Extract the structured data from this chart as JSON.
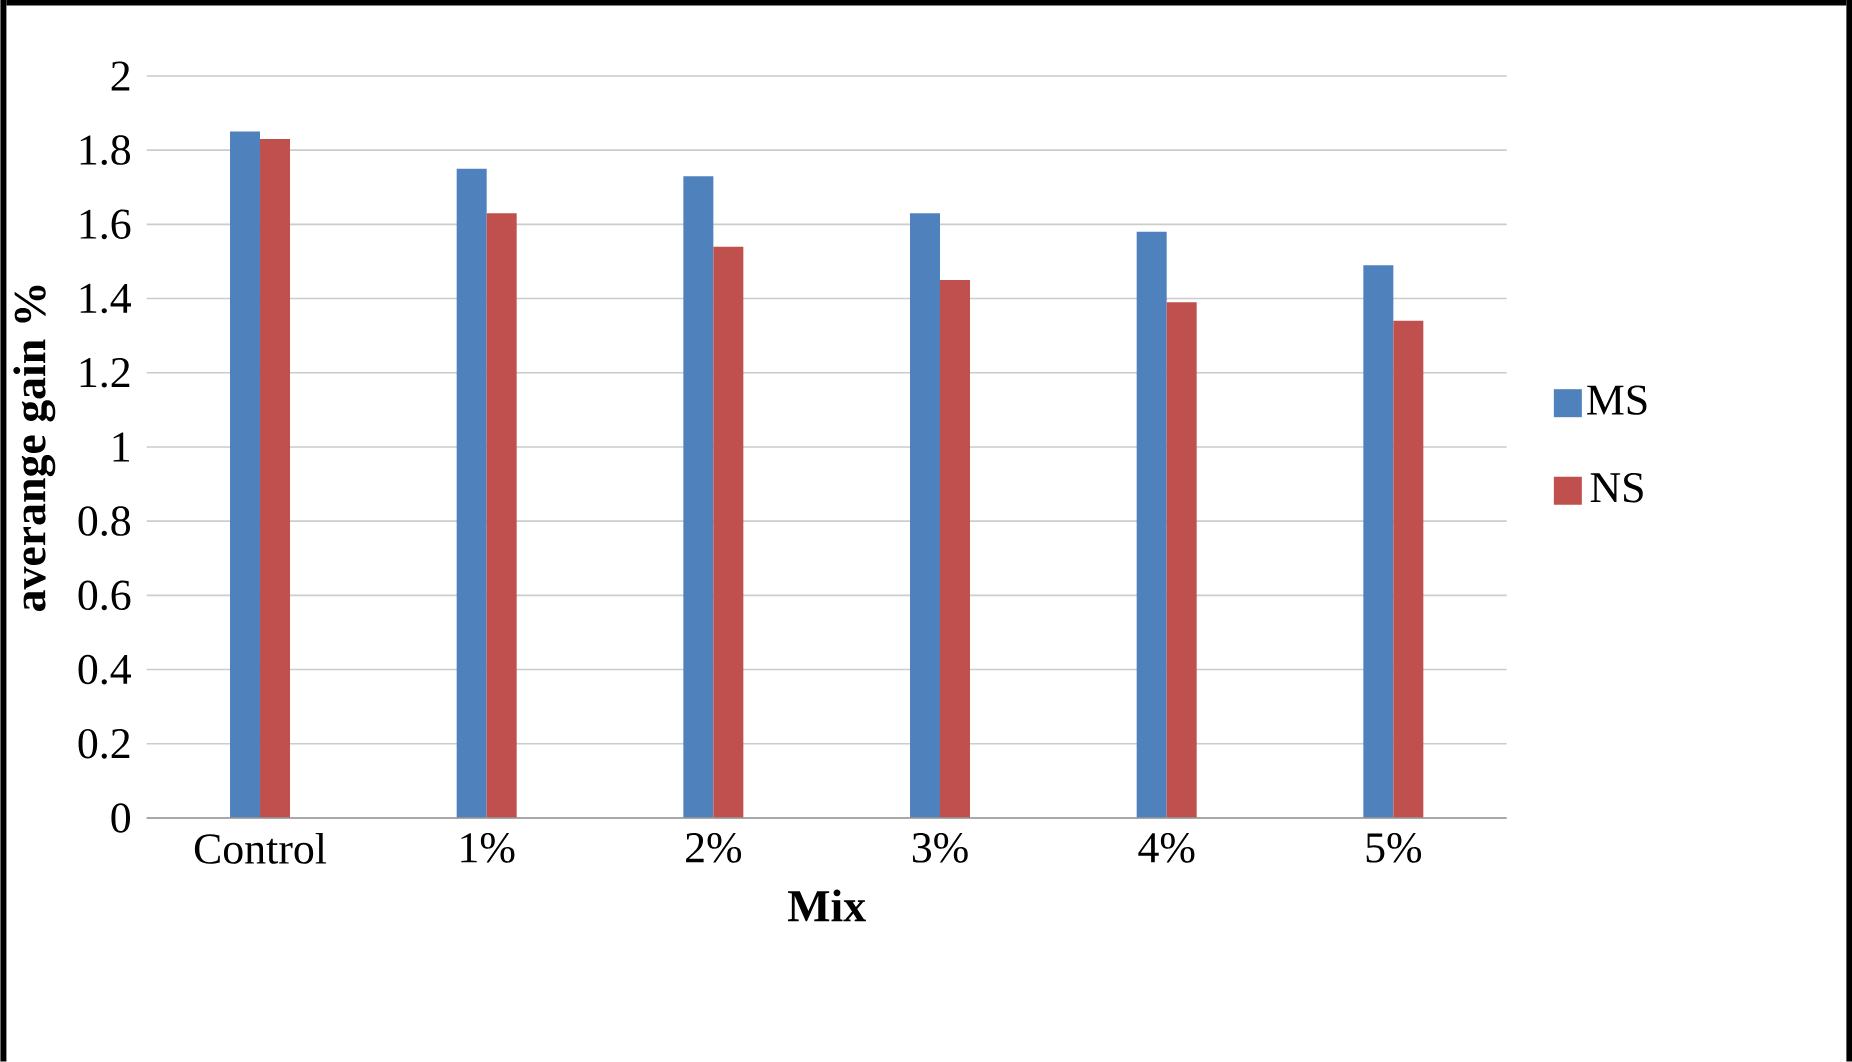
{
  "chart_data": {
    "type": "bar",
    "xlabel": "Mix",
    "ylabel": "averange gain %",
    "categories": [
      "Control",
      "1%",
      "2%",
      "3%",
      "4%",
      "5%"
    ],
    "series": [
      {
        "name": "MS",
        "color": "#4f81bd",
        "values": [
          1.85,
          1.75,
          1.73,
          1.63,
          1.58,
          1.49
        ]
      },
      {
        "name": "NS",
        "color": "#c0504d",
        "values": [
          1.83,
          1.63,
          1.54,
          1.45,
          1.39,
          1.34
        ]
      }
    ],
    "ylim": [
      0,
      2
    ],
    "yticks": [
      0,
      0.2,
      0.4,
      0.6,
      0.8,
      1,
      1.2,
      1.4,
      1.6,
      1.8,
      2
    ],
    "grid": "y",
    "legend": "right"
  }
}
